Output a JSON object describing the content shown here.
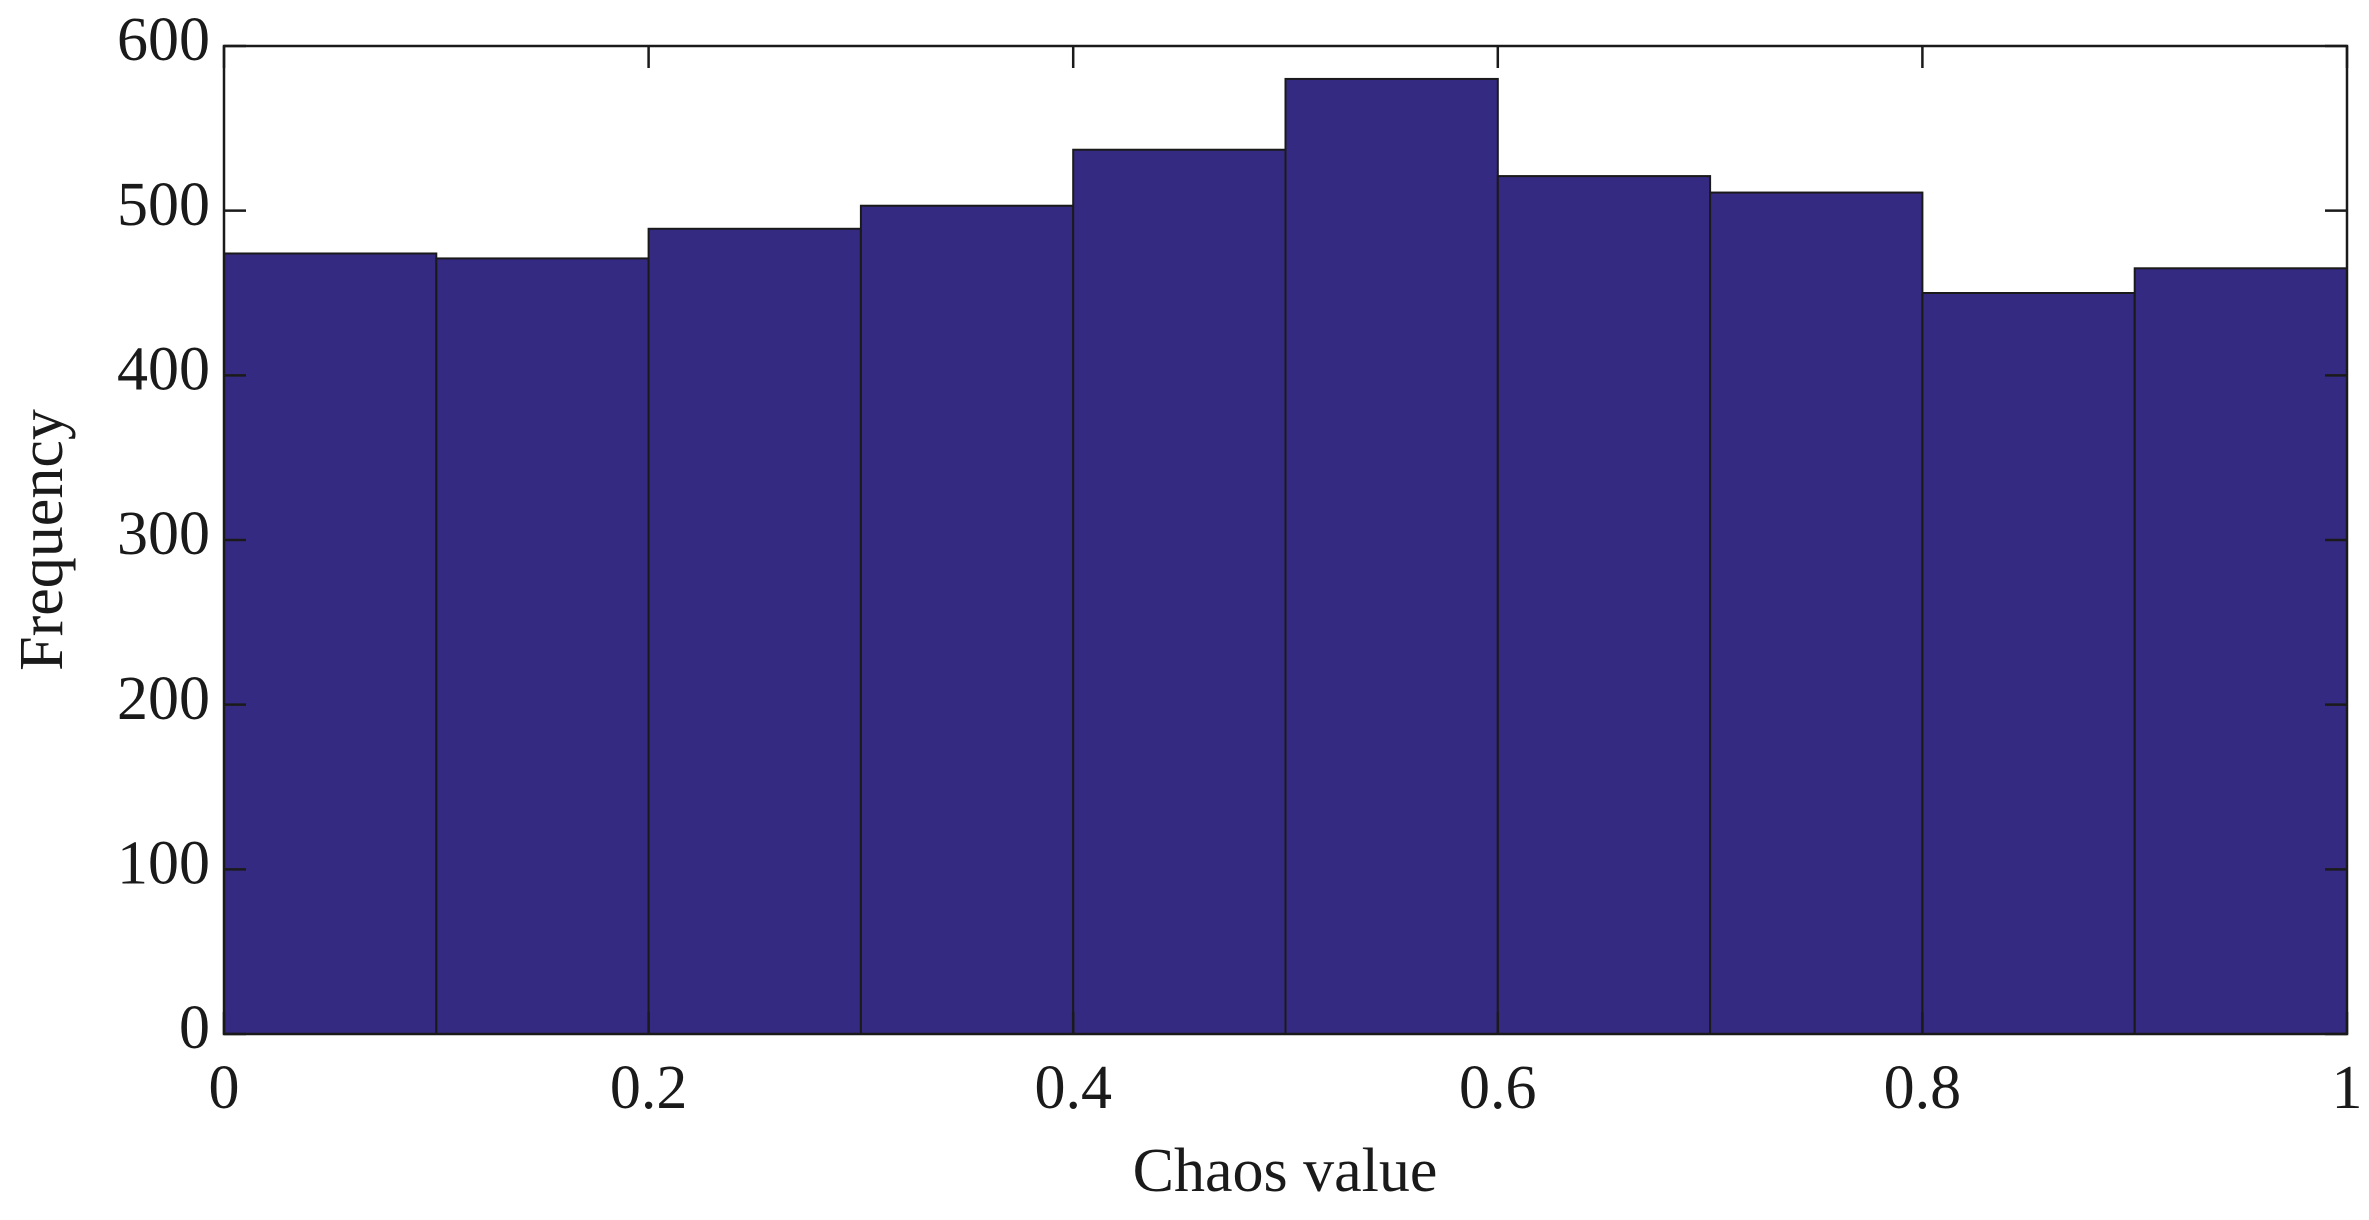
{
  "chart_data": {
    "type": "histogram",
    "xlabel": "Chaos value",
    "ylabel": "Frequency",
    "bins": [
      0,
      0.1,
      0.2,
      0.3,
      0.4,
      0.5,
      0.6,
      0.7,
      0.8,
      0.9,
      1
    ],
    "values": [
      474,
      471,
      489,
      503,
      537,
      580,
      521,
      511,
      450,
      465
    ],
    "color": "#352a82",
    "xlim": [
      0,
      1
    ],
    "xticks": [
      0,
      0.2,
      0.4,
      0.6,
      0.8,
      1
    ],
    "ylim": [
      0,
      600
    ],
    "yticks": [
      0,
      100,
      200,
      300,
      400,
      500,
      600
    ]
  }
}
